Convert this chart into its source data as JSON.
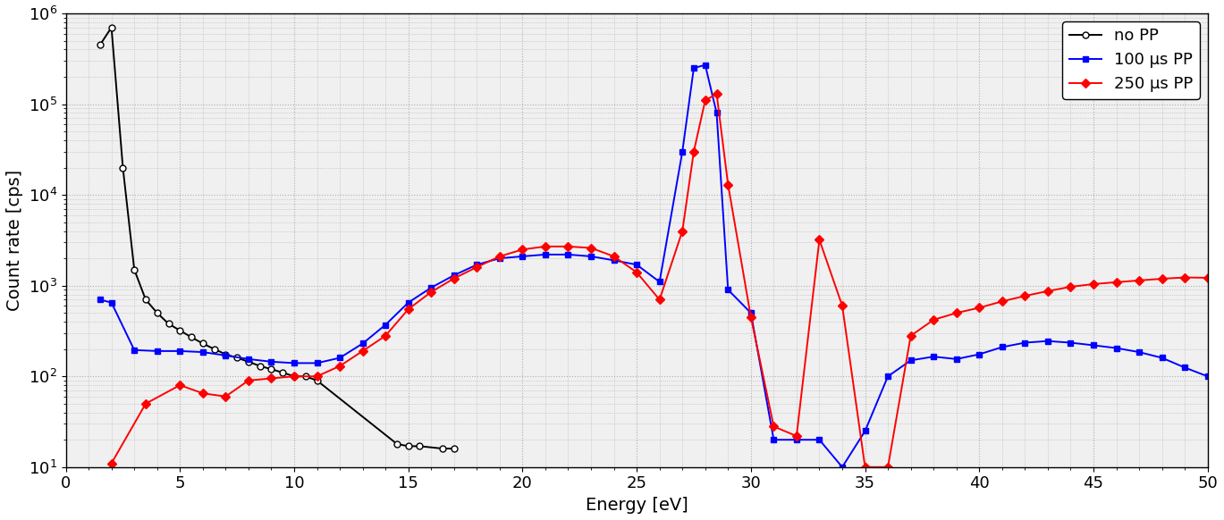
{
  "title": "",
  "xlabel": "Energy [eV]",
  "ylabel": "Count rate [cps]",
  "xlim": [
    0,
    50
  ],
  "ylim": [
    10,
    1000000.0
  ],
  "background_color": "#ffffff",
  "grid_color": "#b0b0b0",
  "series": [
    {
      "label": "no PP",
      "color": "#000000",
      "marker": "o",
      "markersize": 5,
      "linewidth": 1.4,
      "x": [
        1.5,
        2.0,
        2.5,
        3.0,
        3.5,
        4.0,
        4.5,
        5.0,
        5.5,
        6.0,
        6.5,
        7.0,
        7.5,
        8.0,
        8.5,
        9.0,
        9.5,
        10.0,
        10.5,
        11.0,
        14.5,
        15.0,
        15.5,
        16.5,
        17.0
      ],
      "y": [
        450000.0,
        700000.0,
        20000.0,
        1500.0,
        700,
        500,
        380,
        320,
        270,
        230,
        200,
        175,
        160,
        145,
        130,
        120,
        110,
        100,
        100,
        90,
        18,
        17,
        17,
        16,
        16
      ]
    },
    {
      "label": "100 μs PP",
      "color": "#0000ff",
      "marker": "s",
      "markersize": 5,
      "linewidth": 1.4,
      "x": [
        1.5,
        2.0,
        3.0,
        4.0,
        5.0,
        6.0,
        7.0,
        8.0,
        9.0,
        10.0,
        11.0,
        12.0,
        13.0,
        14.0,
        15.0,
        16.0,
        17.0,
        18.0,
        19.0,
        20.0,
        21.0,
        22.0,
        23.0,
        24.0,
        25.0,
        26.0,
        27.0,
        27.5,
        28.0,
        28.5,
        29.0,
        30.0,
        31.0,
        32.0,
        33.0,
        34.0,
        35.0,
        36.0,
        37.0,
        38.0,
        39.0,
        40.0,
        41.0,
        42.0,
        43.0,
        44.0,
        45.0,
        46.0,
        47.0,
        48.0,
        49.0,
        50.0
      ],
      "y": [
        700,
        650,
        195,
        190,
        190,
        185,
        170,
        155,
        145,
        140,
        140,
        160,
        230,
        370,
        650,
        950,
        1300,
        1700,
        2000,
        2100,
        2200,
        2200,
        2100,
        1900,
        1700,
        1100,
        30000.0,
        250000.0,
        270000.0,
        80000.0,
        900,
        500,
        20,
        20,
        20,
        10,
        25,
        100,
        150,
        165,
        155,
        175,
        210,
        235,
        245,
        235,
        220,
        205,
        185,
        160,
        125,
        100
      ]
    },
    {
      "label": "250 μs PP",
      "color": "#ff0000",
      "marker": "D",
      "markersize": 5,
      "linewidth": 1.4,
      "x": [
        2.0,
        3.5,
        5.0,
        6.0,
        7.0,
        8.0,
        9.0,
        10.0,
        11.0,
        12.0,
        13.0,
        14.0,
        15.0,
        16.0,
        17.0,
        18.0,
        19.0,
        20.0,
        21.0,
        22.0,
        23.0,
        24.0,
        25.0,
        26.0,
        27.0,
        27.5,
        28.0,
        28.5,
        29.0,
        30.0,
        31.0,
        32.0,
        33.0,
        34.0,
        35.0,
        36.0,
        37.0,
        38.0,
        39.0,
        40.0,
        41.0,
        42.0,
        43.0,
        44.0,
        45.0,
        46.0,
        47.0,
        48.0,
        49.0,
        50.0
      ],
      "y": [
        11,
        50,
        80,
        65,
        60,
        90,
        95,
        100,
        100,
        130,
        190,
        280,
        550,
        850,
        1200,
        1600,
        2100,
        2500,
        2700,
        2700,
        2600,
        2100,
        1400,
        700,
        4000.0,
        30000.0,
        110000.0,
        130000.0,
        13000.0,
        450,
        28,
        22,
        3200,
        600,
        10,
        10,
        280,
        420,
        500,
        570,
        670,
        770,
        870,
        970,
        1040,
        1090,
        1140,
        1190,
        1230,
        1220
      ]
    }
  ],
  "legend": {
    "loc": "upper right",
    "fontsize": 13,
    "frameon": true
  },
  "tick_fontsize": 13,
  "label_fontsize": 14
}
